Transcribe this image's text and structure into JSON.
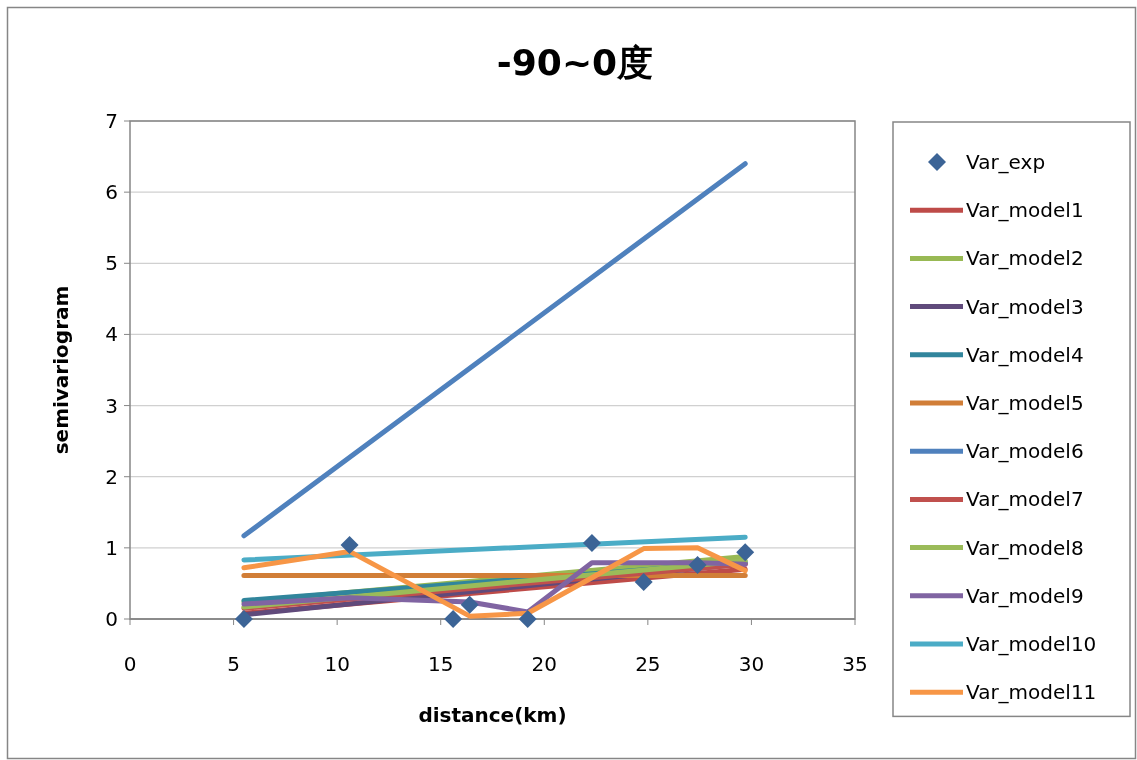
{
  "chart_data": {
    "type": "line",
    "title": "-90~0度",
    "xlabel": "distance(km)",
    "ylabel": "semivariogram",
    "xlim": [
      0,
      35
    ],
    "ylim": [
      0,
      7
    ],
    "xticks": [
      0,
      5,
      10,
      15,
      20,
      25,
      30,
      35
    ],
    "yticks": [
      0,
      1,
      2,
      3,
      4,
      5,
      6,
      7
    ],
    "grid": "y",
    "legend": "right",
    "line_style": "solid",
    "marker": "none",
    "series": [
      {
        "name": "Var_exp",
        "type": "scatter",
        "marker": "diamond",
        "color": "#3c6496",
        "x": [
          5.5,
          10.6,
          15.6,
          16.4,
          19.2,
          22.3,
          24.8,
          27.4,
          29.7
        ],
        "values": [
          0,
          1.04,
          0,
          0.2,
          0,
          1.07,
          0.52,
          0.76,
          0.94
        ]
      },
      {
        "name": "Var_model1",
        "color": "#be4b48",
        "x": [
          5.5,
          29.7
        ],
        "values": [
          0.08,
          0.7
        ]
      },
      {
        "name": "Var_model2",
        "color": "#98b954",
        "x": [
          5.5,
          29.7
        ],
        "values": [
          0.24,
          0.88
        ]
      },
      {
        "name": "Var_model3",
        "color": "#604a7b",
        "x": [
          5.5,
          29.7
        ],
        "values": [
          0.06,
          0.78
        ]
      },
      {
        "name": "Var_model4",
        "color": "#31859c",
        "x": [
          5.5,
          29.7
        ],
        "values": [
          0.26,
          0.8
        ]
      },
      {
        "name": "Var_model5",
        "color": "#d17e37",
        "x": [
          5.5,
          29.7
        ],
        "values": [
          0.61,
          0.61
        ]
      },
      {
        "name": "Var_model6",
        "color": "#4f81bd",
        "x": [
          5.5,
          29.7
        ],
        "values": [
          1.17,
          6.4
        ]
      },
      {
        "name": "Var_model7",
        "color": "#c0504d",
        "x": [
          5.5,
          29.7
        ],
        "values": [
          0.15,
          0.77
        ]
      },
      {
        "name": "Var_model8",
        "color": "#9bbb59",
        "x": [
          5.5,
          29.7
        ],
        "values": [
          0.17,
          0.82
        ]
      },
      {
        "name": "Var_model9",
        "color": "#8064a2",
        "x": [
          5.5,
          10.6,
          16.4,
          19.2,
          22.3,
          27.4,
          29.7
        ],
        "values": [
          0.21,
          0.3,
          0.24,
          0.1,
          0.79,
          0.79,
          0.77
        ]
      },
      {
        "name": "Var_model10",
        "color": "#4bacc6",
        "x": [
          5.5,
          29.7
        ],
        "values": [
          0.83,
          1.15
        ]
      },
      {
        "name": "Var_model11",
        "color": "#f79646",
        "x": [
          5.5,
          10.6,
          16.4,
          19.2,
          22.3,
          24.8,
          27.4,
          29.7
        ],
        "values": [
          0.72,
          0.95,
          0.04,
          0.08,
          0.58,
          0.99,
          1.0,
          0.68
        ]
      }
    ]
  }
}
